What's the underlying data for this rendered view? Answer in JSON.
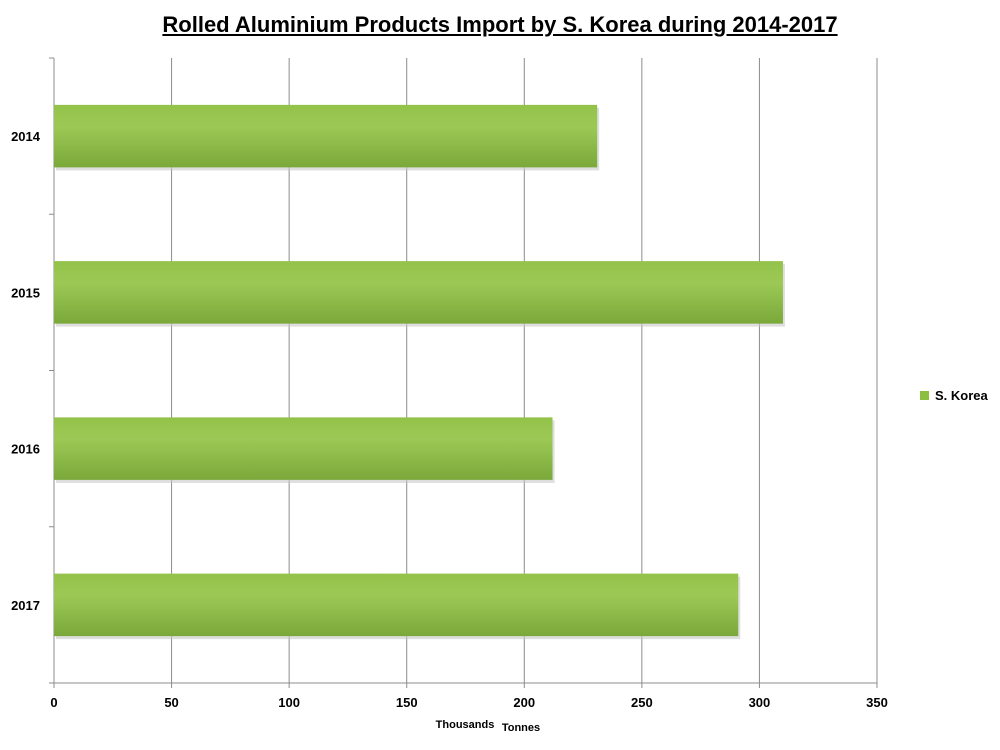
{
  "chart_data": {
    "type": "bar",
    "orientation": "horizontal",
    "title": "Rolled Aluminium Products Import by S. Korea during 2014-2017",
    "xlabel_left": "Thousands",
    "xlabel_right": "Tonnes",
    "categories": [
      "2014",
      "2015",
      "2016",
      "2017"
    ],
    "series": [
      {
        "name": "S. Korea",
        "values": [
          231,
          310,
          212,
          291
        ],
        "color": "#8cbf3f"
      }
    ],
    "xlim": [
      0,
      350
    ],
    "xticks": [
      "0",
      "50",
      "100",
      "150",
      "200",
      "250",
      "300",
      "350"
    ],
    "grid": "vertical",
    "legend_position": "right"
  }
}
